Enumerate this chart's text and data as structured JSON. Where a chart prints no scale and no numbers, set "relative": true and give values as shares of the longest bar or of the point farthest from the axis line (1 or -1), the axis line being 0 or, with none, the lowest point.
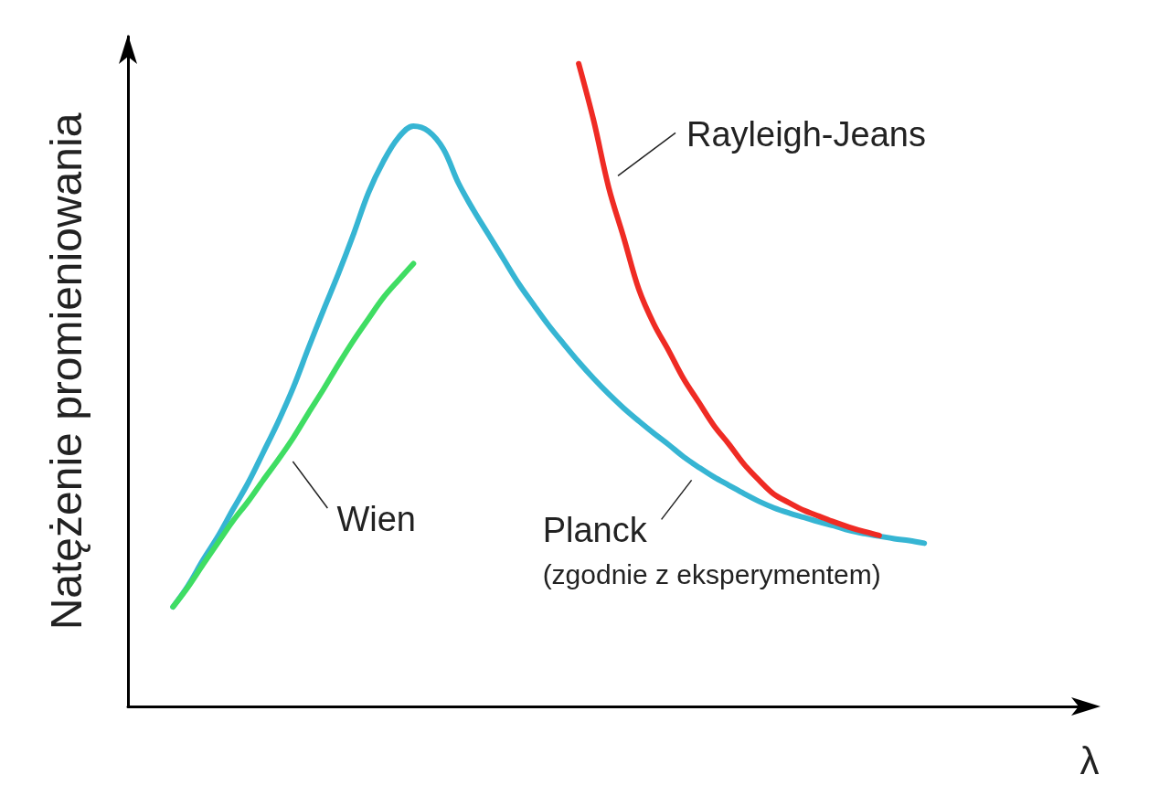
{
  "chart_data": {
    "type": "line",
    "relative": true,
    "xlabel": "λ",
    "ylabel": "Natężenie promieniowania",
    "marker": "none",
    "line_style": "solid",
    "categories": [
      null,
      null,
      null,
      null,
      null,
      null,
      null,
      null,
      null,
      null,
      null,
      null,
      null,
      null,
      null,
      null,
      null,
      null,
      null,
      null,
      null,
      null,
      null,
      null,
      null,
      null,
      null,
      null,
      null,
      null,
      null,
      null,
      null,
      null,
      null,
      null,
      null,
      null,
      null,
      null,
      null,
      null,
      null,
      null,
      null,
      null,
      null,
      null,
      null,
      null,
      null,
      null,
      null,
      null,
      null,
      null,
      null,
      null,
      null,
      null,
      null,
      null,
      null,
      null,
      null
    ],
    "series": [
      {
        "name": "Planck",
        "color": "#36b5d3",
        "values": [
          null,
          null,
          null,
          0.155,
          0.188,
          0.228,
          0.265,
          0.307,
          0.348,
          0.395,
          0.443,
          0.496,
          0.557,
          0.616,
          0.673,
          0.734,
          0.799,
          0.848,
          0.885,
          0.903,
          0.895,
          0.867,
          0.814,
          0.772,
          0.734,
          0.696,
          0.658,
          0.625,
          0.593,
          0.564,
          0.536,
          0.51,
          0.486,
          0.464,
          0.444,
          0.425,
          0.407,
          0.388,
          0.372,
          0.357,
          0.344,
          0.331,
          0.319,
          0.309,
          0.301,
          0.294,
          0.287,
          0.281,
          0.274,
          0.269,
          0.265,
          0.261,
          0.258,
          0.254,
          null,
          null,
          null,
          null,
          null,
          null,
          null,
          null,
          null,
          null,
          null
        ]
      },
      {
        "name": "Wien",
        "color": "#3fdd63",
        "values": [
          null,
          null,
          null,
          0.155,
          0.186,
          0.221,
          0.255,
          0.289,
          0.319,
          0.352,
          0.384,
          0.418,
          0.456,
          0.493,
          0.532,
          0.569,
          0.603,
          0.636,
          0.663,
          0.689,
          null,
          null,
          null,
          null,
          null,
          null,
          null,
          null,
          null,
          null,
          null,
          null,
          null,
          null,
          null,
          null,
          null,
          null,
          null,
          null,
          null,
          null,
          null,
          null,
          null,
          null,
          null,
          null,
          null,
          null,
          null,
          null,
          null,
          null,
          null,
          null,
          null,
          null,
          null,
          null,
          null,
          null,
          null,
          null,
          null
        ]
      },
      {
        "name": "Rayleigh-Jeans",
        "color": "#ef2b24",
        "values": [
          null,
          null,
          null,
          null,
          null,
          null,
          null,
          null,
          null,
          null,
          null,
          null,
          null,
          null,
          null,
          null,
          null,
          null,
          null,
          null,
          null,
          null,
          null,
          null,
          null,
          null,
          null,
          null,
          null,
          null,
          1.0,
          0.911,
          0.807,
          0.729,
          0.649,
          0.595,
          0.553,
          0.509,
          0.473,
          0.437,
          0.408,
          0.377,
          0.352,
          0.33,
          0.317,
          0.305,
          0.296,
          0.287,
          0.279,
          0.272,
          0.266,
          null,
          null,
          null,
          null,
          null,
          null,
          null,
          null,
          null,
          null,
          null,
          null,
          null,
          null
        ]
      }
    ],
    "annotations": [
      "(zgodnie z eksperymentem)"
    ]
  }
}
